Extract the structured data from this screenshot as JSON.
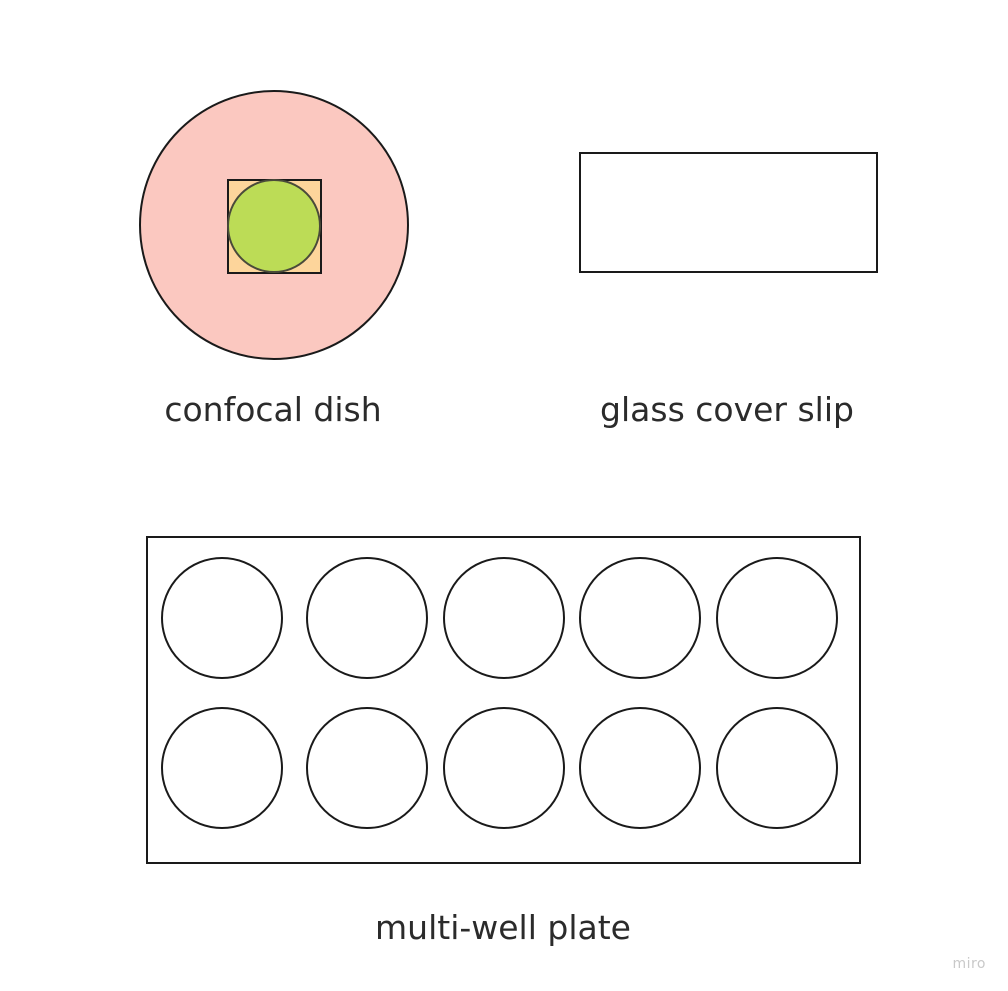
{
  "labels": {
    "dish": "confocal dish",
    "slip": "glass cover slip",
    "plate": "multi-well plate"
  },
  "watermark": "miro",
  "colors": {
    "dish_fill": "#fbc8c0",
    "square_fill": "#fdd59b",
    "inner_circle_fill": "#bcdc56",
    "stroke": "#1a1a1a",
    "background": "#ffffff"
  },
  "plate": {
    "rows": 2,
    "columns": 5
  }
}
